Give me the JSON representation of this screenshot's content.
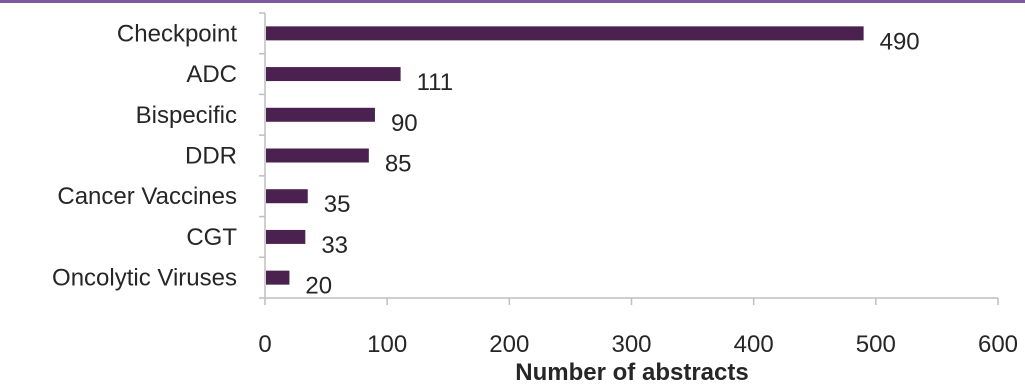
{
  "chart_data": {
    "type": "bar",
    "orientation": "horizontal",
    "categories": [
      "Checkpoint",
      "ADC",
      "Bispecific",
      "DDR",
      "Cancer Vaccines",
      "CGT",
      "Oncolytic Viruses"
    ],
    "values": [
      490,
      111,
      90,
      85,
      35,
      33,
      20
    ],
    "data_labels": [
      "490",
      "111",
      "90",
      "85",
      "35",
      "33",
      "20"
    ],
    "xlabel": "Number of abstracts",
    "ylabel": "",
    "xlim": [
      0,
      600
    ],
    "ticks": [
      "0",
      "100",
      "200",
      "300",
      "400",
      "500",
      "600"
    ],
    "grid": false,
    "legend": "none",
    "bar_color": "#4b2150",
    "accent_line_color": "#7b5a9c"
  }
}
